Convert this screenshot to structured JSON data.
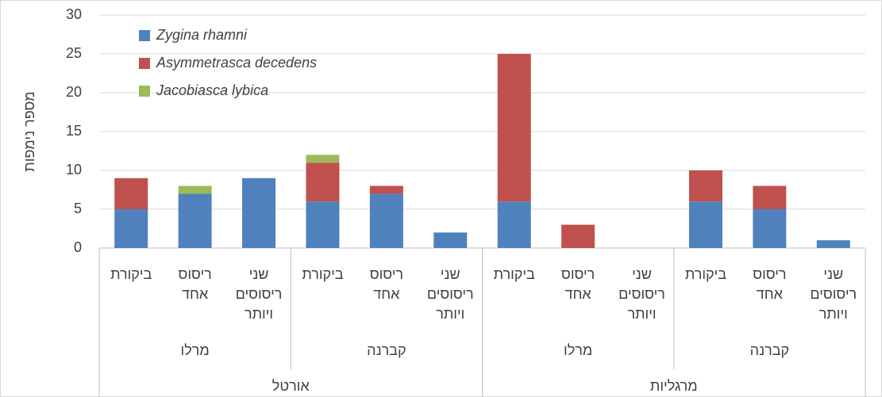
{
  "chart_data": {
    "type": "stacked_bar",
    "y_label": "מספר נימפות",
    "categories": [
      "ביקורת",
      "ריסוס אחד",
      "שני ריסוסים ויותר",
      "ביקורת",
      "ריסוס אחד",
      "שני ריסוסים ויותר",
      "ביקורת",
      "ריסוס אחד",
      "שני ריסוסים ויותר",
      "ביקורת",
      "ריסוס אחד",
      "שני ריסוסים ויותר"
    ],
    "subgroups": [
      "מרלו",
      "קברנה",
      "מרלו",
      "קברנה"
    ],
    "groups": [
      "אורטל",
      "מרגליות"
    ],
    "series": [
      {
        "name": "Zygina rhamni",
        "color": "#4f81bd",
        "values": [
          5,
          7,
          9,
          6,
          7,
          2,
          6,
          0,
          0,
          6,
          5,
          1
        ]
      },
      {
        "name": "Asymmetrasca decedens",
        "color": "#c0504d",
        "values": [
          4,
          0,
          0,
          5,
          1,
          0,
          19,
          3,
          0,
          4,
          3,
          0
        ]
      },
      {
        "name": "Jacobiasca lybica",
        "color": "#9bbb59",
        "values": [
          0,
          1,
          0,
          1,
          0,
          0,
          0,
          0,
          0,
          0,
          0,
          0
        ]
      }
    ],
    "ylim": [
      0,
      30
    ],
    "yticks": [
      0,
      5,
      10,
      15,
      20,
      25,
      30
    ],
    "grid": true,
    "legend": "top-left"
  }
}
